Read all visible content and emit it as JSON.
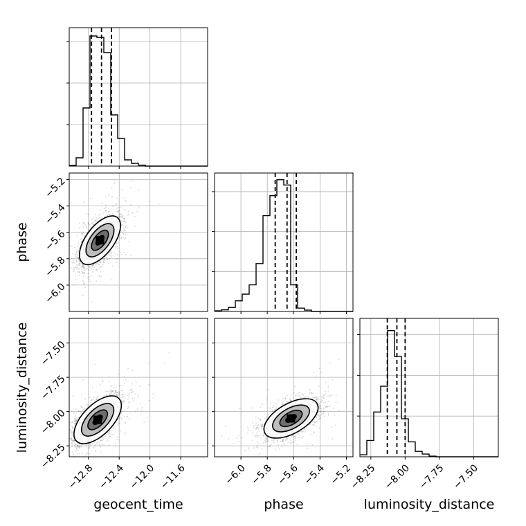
{
  "chart_data": {
    "type": "corner",
    "parameters": [
      "geocent_time",
      "phase",
      "luminosity_distance"
    ],
    "grid": true,
    "axes": {
      "geocent_time": {
        "range": [
          -13.05,
          -11.25
        ],
        "ticks": [
          -12.8,
          -12.4,
          -12.0,
          -11.6
        ],
        "tick_labels": [
          "−12.8",
          "−12.4",
          "−12.0",
          "−11.6"
        ]
      },
      "phase": {
        "range": [
          -6.2,
          -5.15
        ],
        "ticks": [
          -6.0,
          -5.8,
          -5.6,
          -5.4,
          -5.2
        ],
        "tick_labels": [
          "−6.0",
          "−5.8",
          "−5.6",
          "−5.4",
          "−5.2"
        ]
      },
      "luminosity_distance": {
        "range": [
          -8.33,
          -7.32
        ],
        "ticks": [
          -8.25,
          -8.0,
          -7.75,
          -7.5
        ],
        "tick_labels": [
          "−8.25",
          "−8.00",
          "−7.75",
          "−7.50"
        ]
      }
    },
    "histograms": {
      "geocent_time": {
        "bin_edges": [
          -13.05,
          -12.96,
          -12.87,
          -12.78,
          -12.69,
          -12.6,
          -12.51,
          -12.42,
          -12.33,
          -12.24,
          -12.15,
          -12.06,
          -11.97,
          -11.88,
          -11.79,
          -11.7,
          -11.61,
          -11.52,
          -11.43,
          -11.34,
          -11.25
        ],
        "counts": [
          0.005,
          0.06,
          0.42,
          0.94,
          0.93,
          0.82,
          0.37,
          0.2,
          0.045,
          0.02,
          0.007,
          0,
          0,
          0,
          0,
          0,
          0,
          0,
          0,
          0
        ],
        "quantiles": [
          -12.76,
          -12.63,
          -12.5
        ],
        "ymax": 1.0
      },
      "phase": {
        "bin_edges": [
          -6.2,
          -6.1475,
          -6.095,
          -6.0425,
          -5.99,
          -5.9375,
          -5.885,
          -5.8325,
          -5.78,
          -5.7275,
          -5.675,
          -5.6225,
          -5.57,
          -5.5175,
          -5.465,
          -5.4125,
          -5.36,
          -5.3075,
          -5.255,
          -5.2025,
          -5.15
        ],
        "counts": [
          0.005,
          0.012,
          0.03,
          0.08,
          0.13,
          0.2,
          0.36,
          0.72,
          0.87,
          0.99,
          0.95,
          0.2,
          0.025,
          0.01,
          0,
          0,
          0,
          0,
          0,
          0
        ],
        "quantiles": [
          -5.74,
          -5.65,
          -5.58
        ],
        "ymax": 1.04
      },
      "luminosity_distance": {
        "bin_edges": [
          -8.33,
          -8.2795,
          -8.229,
          -8.1785,
          -8.128,
          -8.0775,
          -8.027,
          -7.9765,
          -7.926,
          -7.8755,
          -7.825,
          -7.7745,
          -7.724,
          -7.6735,
          -7.623,
          -7.5725,
          -7.522,
          -7.4715,
          -7.421,
          -7.3705,
          -7.32
        ],
        "counts": [
          0.015,
          0.12,
          0.33,
          0.52,
          0.93,
          0.74,
          0.28,
          0.11,
          0.04,
          0.02,
          0.005,
          0,
          0,
          0,
          0,
          0,
          0,
          0,
          0,
          0
        ],
        "quantiles": [
          -8.13,
          -8.06,
          -8.0
        ],
        "ymax": 1.02
      }
    },
    "pairs": [
      {
        "x": "geocent_time",
        "y": "phase",
        "mean": [
          -12.65,
          -5.66
        ],
        "sd": [
          0.13,
          0.09
        ],
        "corr": 0.6,
        "levels": [
          0.4,
          0.85,
          1.4,
          2.05
        ]
      },
      {
        "x": "geocent_time",
        "y": "luminosity_distance",
        "mean": [
          -12.68,
          -8.06
        ],
        "sd": [
          0.15,
          0.085
        ],
        "corr": 0.6,
        "levels": [
          0.4,
          0.85,
          1.4,
          2.05
        ]
      },
      {
        "x": "phase",
        "y": "luminosity_distance",
        "mean": [
          -5.62,
          -8.05
        ],
        "sd": [
          0.1,
          0.07
        ],
        "corr": 0.55,
        "levels": [
          0.4,
          0.85,
          1.4,
          2.05
        ]
      }
    ],
    "xlabels": [
      "geocent_time",
      "phase",
      "luminosity_distance"
    ],
    "ylabels": [
      "",
      "phase",
      "luminosity_distance"
    ]
  }
}
